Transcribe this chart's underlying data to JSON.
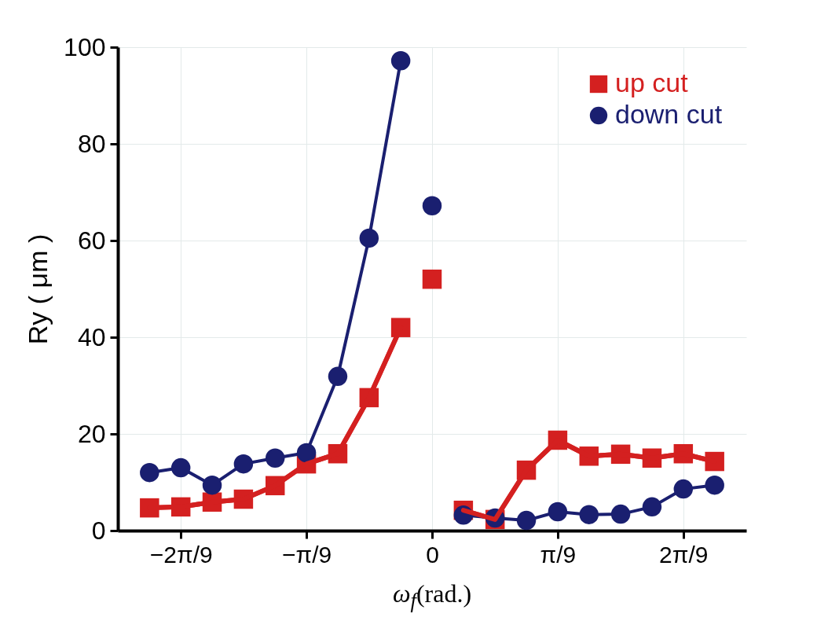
{
  "chart_data": {
    "type": "line",
    "xlabel": "ω$_{f}$(rad.)",
    "ylabel": "Ry ( μm )",
    "xlim": [
      -0.873,
      0.873
    ],
    "ylim": [
      0,
      100
    ],
    "xticks": [
      {
        "value": -0.698,
        "label": "−2π/9"
      },
      {
        "value": -0.349,
        "label": "−π/9"
      },
      0,
      {
        "value": 0.349,
        "label": "π/9"
      },
      {
        "value": 0.698,
        "label": "2π/9"
      }
    ],
    "yticks": [
      0,
      20,
      40,
      60,
      80,
      100
    ],
    "grid": true,
    "legend": "top right",
    "series": [
      {
        "name": "up cut",
        "color": "#d42020",
        "marker": "square",
        "x": [
          -0.785,
          -0.698,
          -0.611,
          -0.524,
          -0.436,
          -0.349,
          -0.262,
          -0.175,
          -0.087,
          null,
          0.087,
          0.175,
          0.262,
          0.349,
          0.436,
          0.524,
          0.611,
          0.698,
          0.785
        ],
        "values": [
          4.7,
          4.9,
          5.9,
          6.5,
          9.3,
          13.8,
          15.9,
          27.5,
          42,
          null,
          4.2,
          2.3,
          12.5,
          18.7,
          15.4,
          15.8,
          15,
          15.9,
          14.3
        ]
      },
      {
        "name": "down cut",
        "color": "#1a1f70",
        "marker": "circle",
        "x": [
          -0.785,
          -0.698,
          -0.611,
          -0.524,
          -0.436,
          -0.349,
          -0.262,
          -0.175,
          -0.087,
          null,
          0.087,
          0.175,
          0.262,
          0.349,
          0.436,
          0.524,
          0.611,
          0.698,
          0.785
        ],
        "values": [
          12,
          13,
          9.4,
          13.8,
          15,
          16.1,
          31.9,
          60.5,
          97.2,
          null,
          3.2,
          2.6,
          2.1,
          3.9,
          3.3,
          3.4,
          4.9,
          8.6,
          9.4
        ]
      },
      {
        "type": "scatter",
        "color": "#d42020",
        "marker": "square",
        "x": [
          0
        ],
        "values": [
          52
        ]
      },
      {
        "type": "scatter",
        "color": "#1a1f70",
        "marker": "circle",
        "x": [
          0
        ],
        "values": [
          67.2
        ]
      }
    ]
  }
}
